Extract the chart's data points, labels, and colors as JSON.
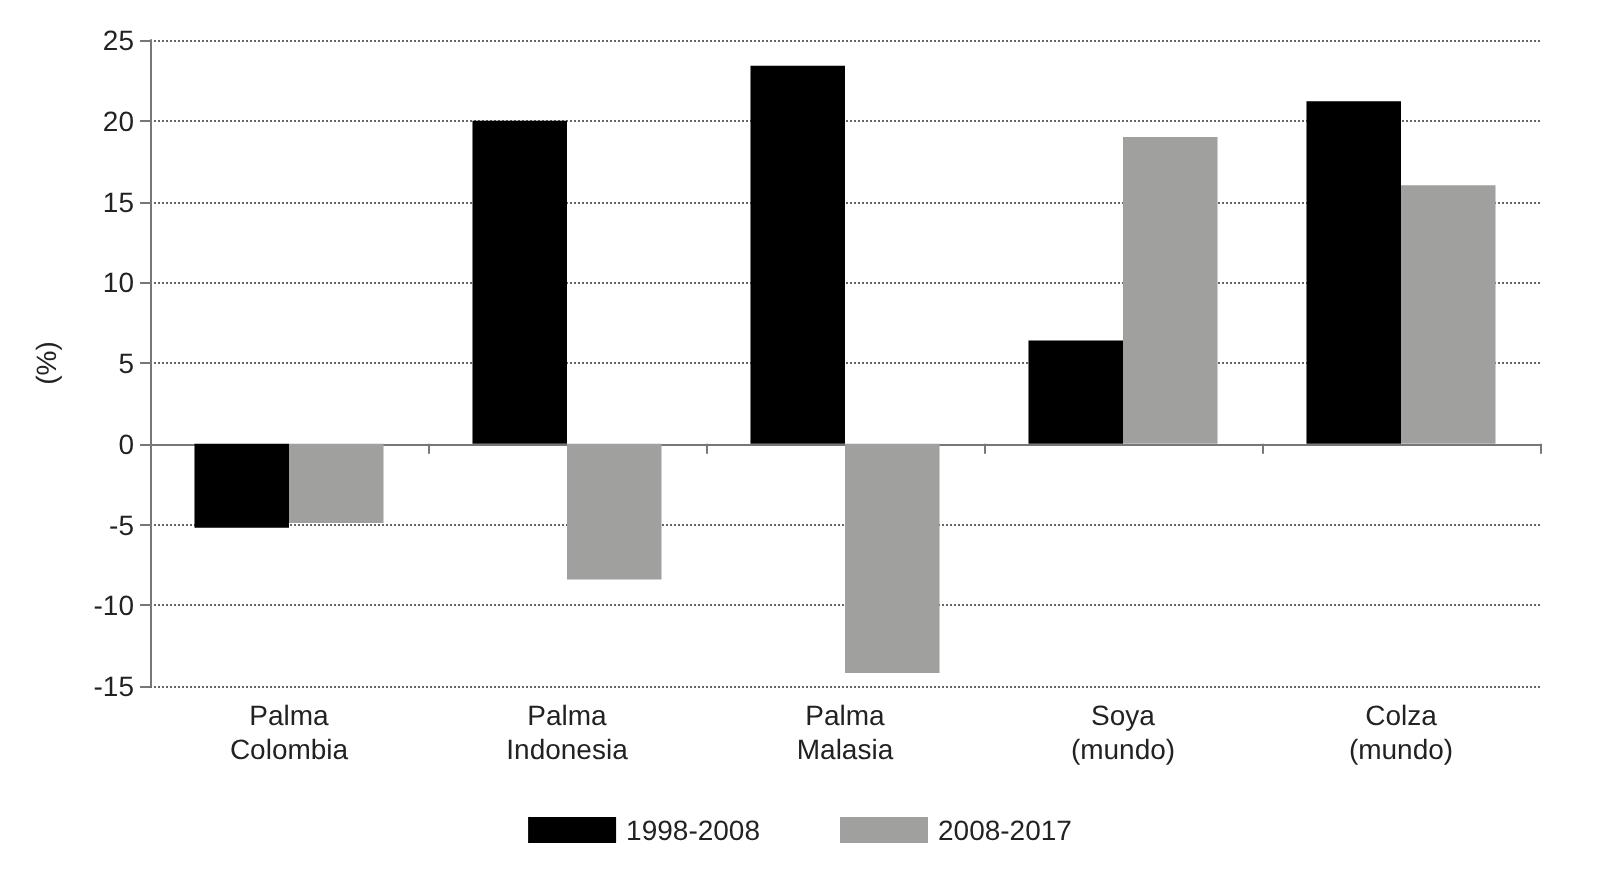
{
  "chart_data": {
    "type": "bar",
    "ylabel": "(%)",
    "categories": [
      "Palma\nColombia",
      "Palma\nIndonesia",
      "Palma\nMalasia",
      "Soya\n(mundo)",
      "Colza\n(mundo)"
    ],
    "series": [
      {
        "name": "1998-2008",
        "color": "#000000",
        "values": [
          -5.2,
          20.0,
          23.4,
          6.4,
          21.2
        ]
      },
      {
        "name": "2008-2017",
        "color": "#a0a09f",
        "values": [
          -4.9,
          -8.4,
          -14.2,
          19.0,
          16.0
        ]
      }
    ],
    "ylim": [
      -15,
      25
    ],
    "yticks": [
      -15,
      -10,
      -5,
      0,
      5,
      10,
      15,
      20,
      25
    ],
    "grid": "y",
    "legend": "bottom"
  }
}
